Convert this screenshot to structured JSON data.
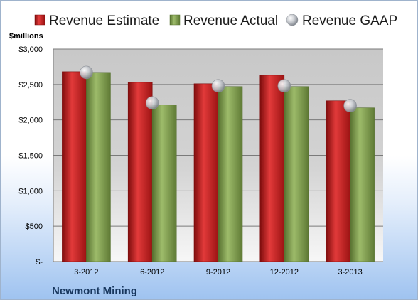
{
  "chart_data": {
    "type": "bar",
    "unit_label": "$millions",
    "company": "Newmont Mining",
    "categories": [
      "3-2012",
      "6-2012",
      "9-2012",
      "12-2012",
      "3-2013"
    ],
    "y_ticks": [
      0,
      500,
      1000,
      1500,
      2000,
      2500,
      3000
    ],
    "y_tick_labels": [
      "$-",
      "$500",
      "$1,000",
      "$1,500",
      "$2,000",
      "$2,500",
      "$3,000"
    ],
    "ylim": [
      0,
      3000
    ],
    "legend_position": "top",
    "series": [
      {
        "name": "Revenue Estimate",
        "kind": "bar",
        "color": "#d42a2a",
        "values": [
          2680,
          2530,
          2510,
          2630,
          2270
        ]
      },
      {
        "name": "Revenue Actual",
        "kind": "bar",
        "color": "#8dab5d",
        "values": [
          2670,
          2210,
          2470,
          2470,
          2170
        ]
      },
      {
        "name": "Revenue GAAP",
        "kind": "marker",
        "color": "#c8ccd2",
        "values": [
          2670,
          2240,
          2480,
          2480,
          2200
        ]
      }
    ]
  }
}
